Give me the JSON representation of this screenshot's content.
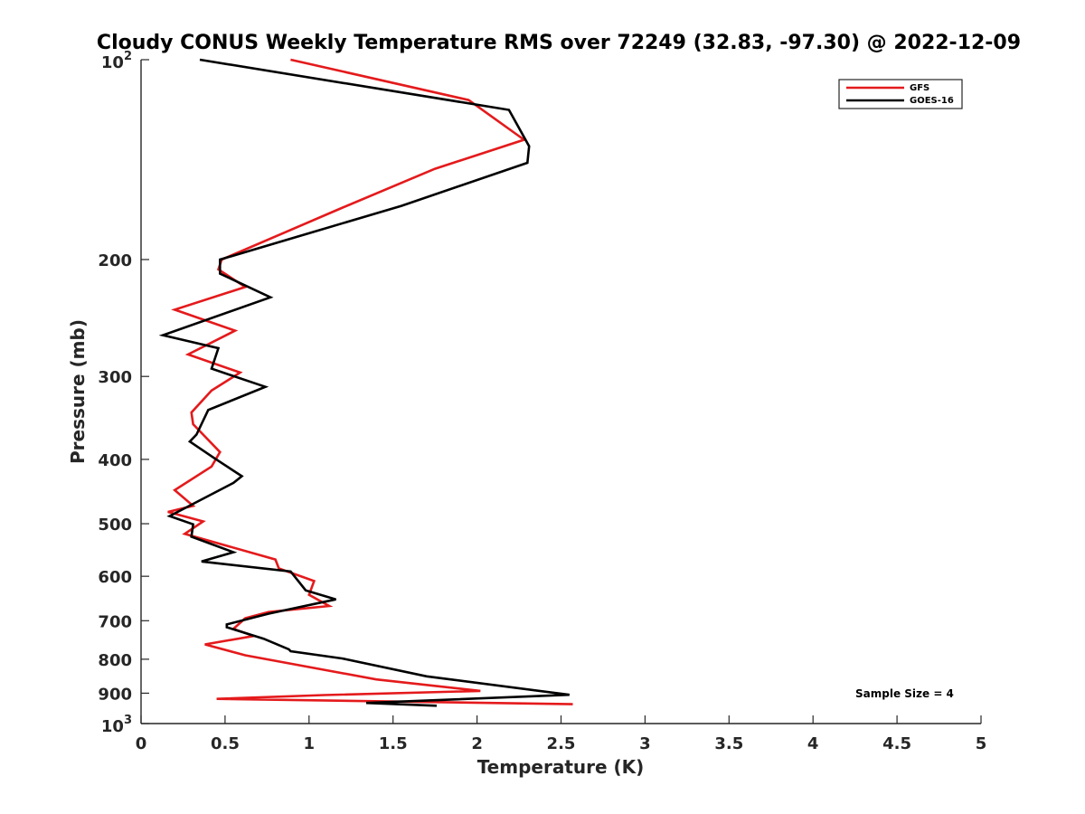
{
  "chart_data": {
    "type": "line",
    "title": "Cloudy CONUS Weekly Temperature RMS over 72249 (32.83, -97.30) @ 2022-12-09",
    "xlabel": "Temperature (K)",
    "ylabel": "Pressure (mb)",
    "xlim": [
      0,
      5
    ],
    "ylim": [
      100,
      1000
    ],
    "y_scale": "log",
    "y_reversed": true,
    "grid": false,
    "legend_position": "top-right",
    "x_ticks": [
      0,
      0.5,
      1,
      1.5,
      2,
      2.5,
      3,
      3.5,
      4,
      4.5,
      5
    ],
    "x_tick_labels": [
      "0",
      "0.5",
      "1",
      "1.5",
      "2",
      "2.5",
      "3",
      "3.5",
      "4",
      "4.5",
      "5"
    ],
    "y_ticks": [
      200,
      300,
      400,
      500,
      600,
      700,
      800,
      900
    ],
    "y_tick_labels": [
      "200",
      "300",
      "400",
      "500",
      "600",
      "700",
      "800",
      "900"
    ],
    "y_tick_10_base": "10",
    "y_tick_top_exp": "2",
    "y_tick_bottom_exp": "3",
    "annotation": "Sample Size = 4",
    "series": [
      {
        "name": "GFS",
        "color": "#e41a1c",
        "points": [
          [
            0.89,
            100
          ],
          [
            1.95,
            115
          ],
          [
            2.28,
            132
          ],
          [
            1.75,
            146
          ],
          [
            1.2,
            167
          ],
          [
            0.48,
            200
          ],
          [
            0.46,
            207
          ],
          [
            0.62,
            220
          ],
          [
            0.2,
            238
          ],
          [
            0.56,
            256
          ],
          [
            0.28,
            278
          ],
          [
            0.59,
            296
          ],
          [
            0.42,
            315
          ],
          [
            0.3,
            340
          ],
          [
            0.31,
            354
          ],
          [
            0.47,
            390
          ],
          [
            0.42,
            410
          ],
          [
            0.2,
            445
          ],
          [
            0.31,
            470
          ],
          [
            0.16,
            480
          ],
          [
            0.37,
            496
          ],
          [
            0.26,
            518
          ],
          [
            0.8,
            566
          ],
          [
            0.82,
            584
          ],
          [
            1.03,
            610
          ],
          [
            1.0,
            640
          ],
          [
            1.12,
            665
          ],
          [
            0.76,
            679
          ],
          [
            0.62,
            694
          ],
          [
            0.55,
            720
          ],
          [
            0.67,
            738
          ],
          [
            0.38,
            760
          ],
          [
            0.62,
            789
          ],
          [
            1.4,
            858
          ],
          [
            2.02,
            893
          ],
          [
            1.09,
            906
          ],
          [
            0.45,
            918
          ],
          [
            2.57,
            935
          ]
        ]
      },
      {
        "name": "GOES-16",
        "color": "#000000",
        "points": [
          [
            0.35,
            100
          ],
          [
            2.19,
            119
          ],
          [
            2.31,
            135
          ],
          [
            2.3,
            143
          ],
          [
            1.55,
            166
          ],
          [
            0.47,
            200
          ],
          [
            0.47,
            210
          ],
          [
            0.77,
            228
          ],
          [
            0.13,
            260
          ],
          [
            0.46,
            272
          ],
          [
            0.42,
            292
          ],
          [
            0.74,
            311
          ],
          [
            0.4,
            337
          ],
          [
            0.33,
            367
          ],
          [
            0.29,
            376
          ],
          [
            0.44,
            399
          ],
          [
            0.6,
            424
          ],
          [
            0.55,
            434
          ],
          [
            0.17,
            487
          ],
          [
            0.31,
            501
          ],
          [
            0.3,
            523
          ],
          [
            0.55,
            552
          ],
          [
            0.36,
            570
          ],
          [
            0.89,
            590
          ],
          [
            0.98,
            630
          ],
          [
            1.16,
            650
          ],
          [
            0.76,
            683
          ],
          [
            0.51,
            709
          ],
          [
            0.51,
            716
          ],
          [
            0.73,
            745
          ],
          [
            0.88,
            773
          ],
          [
            0.89,
            778
          ],
          [
            1.2,
            798
          ],
          [
            1.7,
            849
          ],
          [
            2.55,
            905
          ],
          [
            1.34,
            931
          ],
          [
            1.76,
            940
          ]
        ]
      }
    ]
  }
}
